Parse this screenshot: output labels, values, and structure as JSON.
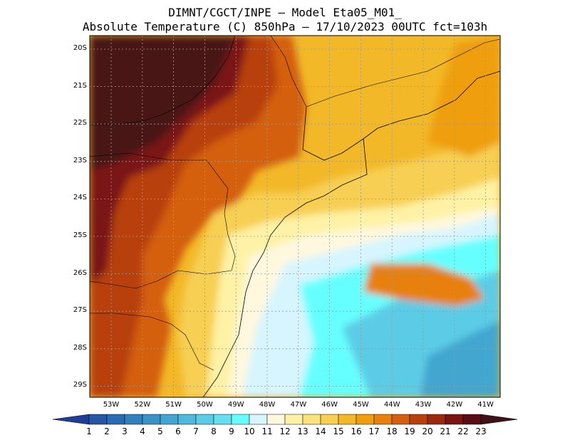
{
  "title_line1": "DIMNT/CGCT/INPE –  Model Eta05_M01_",
  "title_line2": "Absolute Temperature (C) 850hPa –  17/10/2023 00UTC fct=103h",
  "lat_labels": [
    "20S",
    "21S",
    "22S",
    "23S",
    "24S",
    "25S",
    "26S",
    "27S",
    "28S",
    "29S"
  ],
  "lon_labels": [
    "53W",
    "52W",
    "51W",
    "50W",
    "49W",
    "48W",
    "47W",
    "46W",
    "45W",
    "44W",
    "43W",
    "42W",
    "41W"
  ],
  "colorbar": {
    "labels": [
      "1",
      "2",
      "3",
      "4",
      "5",
      "6",
      "7",
      "8",
      "9",
      "10",
      "11",
      "12",
      "13",
      "14",
      "15",
      "16",
      "17",
      "18",
      "19",
      "20",
      "21",
      "22",
      "23"
    ],
    "colors": [
      "#1f3f97",
      "#2557a6",
      "#2a6cb3",
      "#3280bd",
      "#3a93c7",
      "#42a6d1",
      "#4fb9dc",
      "#5ccce6",
      "#66dfee",
      "#66ffff",
      "#d6f5ff",
      "#fff8df",
      "#fff2a6",
      "#fbe37c",
      "#f7cf52",
      "#f2b828",
      "#ef9f0a",
      "#e8800d",
      "#d45f0e",
      "#b8400c",
      "#9b2a0d",
      "#7a1414",
      "#5a0c17",
      "#3f1014"
    ]
  },
  "palette": {
    "sea": "#5ee8ee",
    "sea_deep": "#43a6cf",
    "hot": "#4a1418"
  }
}
